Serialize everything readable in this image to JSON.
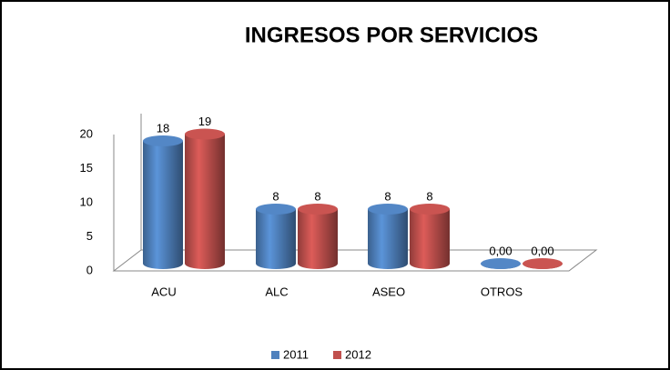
{
  "chart_data": {
    "type": "bar3d",
    "title": "INGRESOS POR SERVICIOS",
    "categories": [
      "ACU",
      "ALC",
      "ASEO",
      "OTROS"
    ],
    "series": [
      {
        "name": "2011",
        "color": "#4f81bd",
        "values": [
          18,
          8,
          8,
          0
        ],
        "value_labels": [
          "18",
          "8",
          "8",
          "0,00"
        ]
      },
      {
        "name": "2012",
        "color": "#c0504d",
        "values": [
          19,
          8,
          8,
          0
        ],
        "value_labels": [
          "19",
          "8",
          "8",
          "0,00"
        ]
      }
    ],
    "ylim": [
      0,
      20
    ],
    "yticks": [
      0,
      5,
      10,
      15,
      20
    ],
    "grid": false,
    "legend": "bottom"
  }
}
